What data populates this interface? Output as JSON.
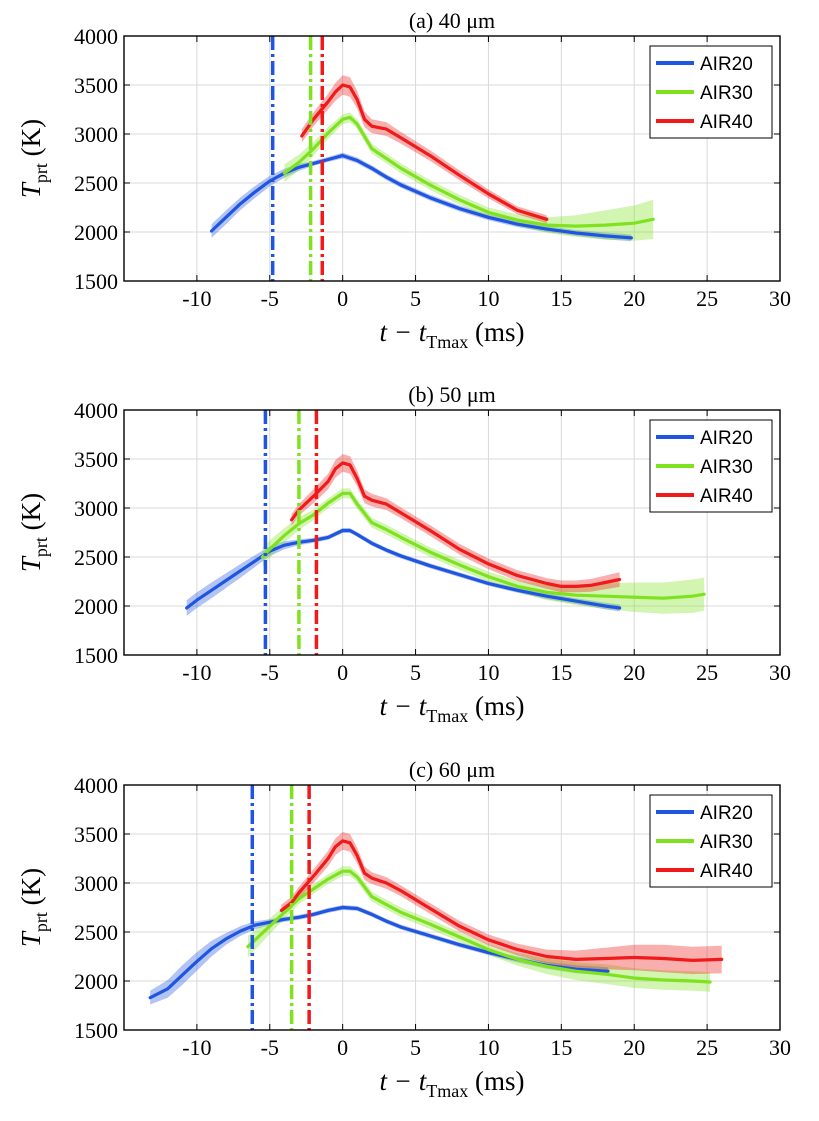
{
  "chart_data": [
    {
      "type": "line",
      "title": "(a)  40 μm",
      "xlabel": "t − t",
      "xlabel_sub": "Tmax",
      "xlabel_unit": " (ms)",
      "ylabel": "T",
      "ylabel_sub": "prt",
      "ylabel_unit": "  (K)",
      "xlim": [
        -15,
        30
      ],
      "ylim": [
        1500,
        4000
      ],
      "xticks": [
        -10,
        -5,
        0,
        5,
        10,
        15,
        20,
        25,
        30
      ],
      "yticks": [
        1500,
        2000,
        2500,
        3000,
        3500,
        4000
      ],
      "grid": true,
      "legend_position": "top-right",
      "vlines": [
        {
          "series": "AIR20",
          "x": -4.8
        },
        {
          "series": "AIR30",
          "x": -2.2
        },
        {
          "series": "AIR40",
          "x": -1.4
        }
      ],
      "series": [
        {
          "name": "AIR20",
          "color": "#1f55e0",
          "x": [
            -9,
            -8,
            -7,
            -6,
            -5,
            -4,
            -3,
            -2,
            -1,
            0,
            1,
            2,
            3,
            4,
            6,
            8,
            10,
            12,
            14,
            16,
            18,
            19.8
          ],
          "y": [
            2010,
            2150,
            2290,
            2410,
            2520,
            2600,
            2660,
            2700,
            2740,
            2780,
            2730,
            2650,
            2560,
            2480,
            2350,
            2240,
            2150,
            2080,
            2030,
            1990,
            1960,
            1940
          ],
          "band": [
            70,
            70,
            65,
            60,
            55,
            45,
            35,
            25,
            25,
            30,
            30,
            30,
            30,
            30,
            30,
            30,
            30,
            30,
            30,
            30,
            35,
            35
          ]
        },
        {
          "name": "AIR30",
          "color": "#7ee21f",
          "x": [
            -4,
            -3,
            -2,
            -1,
            0,
            0.5,
            1,
            2,
            3,
            4,
            6,
            8,
            10,
            12,
            14,
            16,
            18,
            20,
            21.3
          ],
          "y": [
            2600,
            2710,
            2850,
            3010,
            3150,
            3170,
            3100,
            2850,
            2750,
            2650,
            2480,
            2330,
            2200,
            2120,
            2070,
            2060,
            2070,
            2090,
            2130
          ],
          "band": [
            90,
            80,
            70,
            60,
            50,
            50,
            50,
            50,
            50,
            50,
            50,
            50,
            50,
            60,
            80,
            110,
            150,
            180,
            200
          ]
        },
        {
          "name": "AIR40",
          "color": "#f01a1a",
          "x": [
            -2.8,
            -2,
            -1,
            -0.5,
            0,
            0.5,
            1,
            1.5,
            2,
            3,
            4,
            6,
            8,
            10,
            12,
            14
          ],
          "y": [
            2980,
            3150,
            3330,
            3430,
            3500,
            3480,
            3350,
            3150,
            3080,
            3050,
            2960,
            2780,
            2580,
            2390,
            2220,
            2130
          ],
          "band": [
            70,
            70,
            80,
            90,
            100,
            100,
            90,
            80,
            70,
            70,
            60,
            55,
            50,
            45,
            40,
            40
          ]
        }
      ]
    },
    {
      "type": "line",
      "title": "(b)  50 μm",
      "xlabel": "t − t",
      "xlabel_sub": "Tmax",
      "xlabel_unit": " (ms)",
      "ylabel": "T",
      "ylabel_sub": "prt",
      "ylabel_unit": "  (K)",
      "xlim": [
        -15,
        30
      ],
      "ylim": [
        1500,
        4000
      ],
      "xticks": [
        -10,
        -5,
        0,
        5,
        10,
        15,
        20,
        25,
        30
      ],
      "yticks": [
        1500,
        2000,
        2500,
        3000,
        3500,
        4000
      ],
      "grid": true,
      "legend_position": "top-right",
      "vlines": [
        {
          "series": "AIR20",
          "x": -5.3
        },
        {
          "series": "AIR30",
          "x": -3.0
        },
        {
          "series": "AIR40",
          "x": -1.8
        }
      ],
      "series": [
        {
          "name": "AIR20",
          "color": "#1f55e0",
          "x": [
            -10.7,
            -10,
            -9,
            -8,
            -7,
            -6,
            -5,
            -4,
            -3,
            -2,
            -1,
            0,
            0.5,
            1,
            2,
            3,
            4,
            6,
            8,
            10,
            12,
            14,
            16,
            18,
            19
          ],
          "y": [
            1980,
            2060,
            2160,
            2260,
            2360,
            2460,
            2560,
            2620,
            2650,
            2670,
            2700,
            2770,
            2770,
            2730,
            2640,
            2570,
            2510,
            2410,
            2320,
            2230,
            2160,
            2100,
            2050,
            2000,
            1980
          ],
          "band": [
            80,
            80,
            80,
            75,
            70,
            60,
            50,
            40,
            30,
            25,
            25,
            25,
            25,
            25,
            25,
            25,
            25,
            25,
            25,
            25,
            25,
            30,
            30,
            35,
            35
          ]
        },
        {
          "name": "AIR30",
          "color": "#7ee21f",
          "x": [
            -5.5,
            -5,
            -4,
            -3,
            -2,
            -1,
            0,
            0.5,
            1,
            2,
            3,
            4,
            6,
            8,
            10,
            12,
            14,
            16,
            18,
            20,
            22,
            24,
            24.8
          ],
          "y": [
            2500,
            2580,
            2720,
            2840,
            2930,
            3050,
            3150,
            3150,
            3040,
            2850,
            2780,
            2700,
            2550,
            2420,
            2300,
            2200,
            2140,
            2110,
            2100,
            2090,
            2080,
            2100,
            2120
          ],
          "band": [
            100,
            90,
            75,
            65,
            55,
            50,
            50,
            50,
            50,
            50,
            50,
            50,
            50,
            50,
            50,
            60,
            80,
            100,
            130,
            150,
            160,
            170,
            170
          ]
        },
        {
          "name": "AIR40",
          "color": "#f01a1a",
          "x": [
            -3.5,
            -3,
            -2,
            -1,
            -0.5,
            0,
            0.5,
            1,
            1.5,
            2,
            3,
            4,
            6,
            8,
            10,
            12,
            14,
            15,
            16,
            17,
            18,
            19
          ],
          "y": [
            2880,
            2980,
            3120,
            3270,
            3400,
            3460,
            3440,
            3300,
            3120,
            3080,
            3040,
            2950,
            2770,
            2580,
            2430,
            2310,
            2230,
            2200,
            2200,
            2210,
            2240,
            2270
          ],
          "band": [
            60,
            60,
            70,
            80,
            90,
            90,
            90,
            80,
            70,
            65,
            60,
            55,
            55,
            55,
            55,
            55,
            55,
            60,
            60,
            65,
            70,
            75
          ]
        }
      ]
    },
    {
      "type": "line",
      "title": "(c)  60 μm",
      "xlabel": "t − t",
      "xlabel_sub": "Tmax",
      "xlabel_unit": " (ms)",
      "ylabel": "T",
      "ylabel_sub": "prt",
      "ylabel_unit": "  (K)",
      "xlim": [
        -15,
        30
      ],
      "ylim": [
        1500,
        4000
      ],
      "xticks": [
        -10,
        -5,
        0,
        5,
        10,
        15,
        20,
        25,
        30
      ],
      "yticks": [
        1500,
        2000,
        2500,
        3000,
        3500,
        4000
      ],
      "grid": true,
      "legend_position": "top-right",
      "vlines": [
        {
          "series": "AIR20",
          "x": -6.2
        },
        {
          "series": "AIR30",
          "x": -3.5
        },
        {
          "series": "AIR40",
          "x": -2.3
        }
      ],
      "series": [
        {
          "name": "AIR20",
          "color": "#1f55e0",
          "x": [
            -13.2,
            -12,
            -11,
            -10,
            -9,
            -8,
            -7,
            -6,
            -5,
            -4,
            -3,
            -2,
            -1,
            0,
            1,
            2,
            3,
            4,
            6,
            8,
            10,
            12,
            14,
            16,
            18.2
          ],
          "y": [
            1830,
            1920,
            2060,
            2200,
            2330,
            2430,
            2510,
            2570,
            2600,
            2630,
            2650,
            2680,
            2720,
            2750,
            2740,
            2680,
            2610,
            2550,
            2460,
            2370,
            2290,
            2220,
            2160,
            2120,
            2100
          ],
          "band": [
            70,
            90,
            100,
            95,
            80,
            60,
            50,
            40,
            30,
            25,
            25,
            25,
            25,
            25,
            25,
            25,
            25,
            25,
            25,
            25,
            25,
            30,
            35,
            40,
            40
          ]
        },
        {
          "name": "AIR30",
          "color": "#7ee21f",
          "x": [
            -6.5,
            -6,
            -5,
            -4,
            -3,
            -2,
            -1,
            0,
            0.5,
            1,
            2,
            3,
            4,
            6,
            8,
            10,
            12,
            14,
            16,
            18,
            20,
            22,
            24,
            25.2
          ],
          "y": [
            2350,
            2420,
            2560,
            2700,
            2840,
            2940,
            3040,
            3120,
            3120,
            3060,
            2860,
            2780,
            2700,
            2580,
            2450,
            2320,
            2220,
            2150,
            2100,
            2070,
            2030,
            2010,
            2000,
            1990
          ],
          "band": [
            110,
            100,
            80,
            65,
            55,
            50,
            50,
            50,
            50,
            50,
            50,
            50,
            50,
            50,
            50,
            55,
            65,
            80,
            90,
            100,
            100,
            100,
            100,
            100
          ]
        },
        {
          "name": "AIR40",
          "color": "#f01a1a",
          "x": [
            -4.2,
            -3.5,
            -3,
            -2,
            -1,
            -0.5,
            0,
            0.5,
            1,
            1.5,
            2,
            3,
            4,
            6,
            8,
            10,
            12,
            14,
            16,
            18,
            20,
            22,
            24,
            26
          ],
          "y": [
            2720,
            2800,
            2900,
            3070,
            3250,
            3370,
            3430,
            3410,
            3280,
            3100,
            3050,
            3000,
            2920,
            2740,
            2560,
            2420,
            2320,
            2250,
            2220,
            2230,
            2240,
            2230,
            2210,
            2220
          ],
          "band": [
            60,
            60,
            60,
            70,
            80,
            85,
            90,
            90,
            80,
            70,
            60,
            60,
            55,
            55,
            55,
            55,
            60,
            70,
            90,
            110,
            130,
            140,
            140,
            140
          ]
        }
      ]
    }
  ]
}
